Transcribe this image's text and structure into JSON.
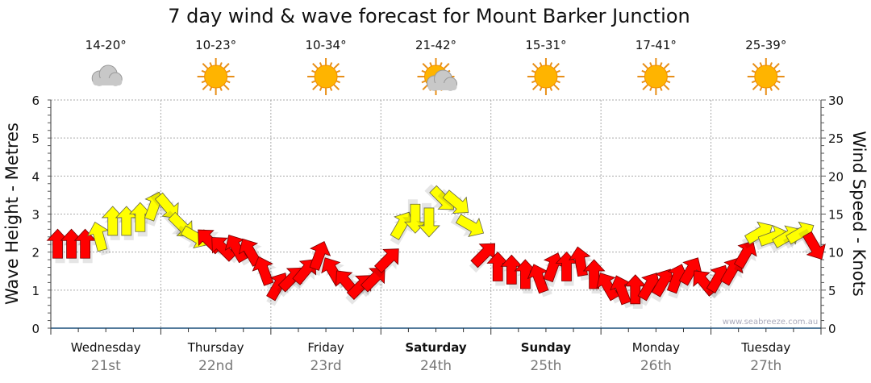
{
  "chart_data": {
    "type": "scatter",
    "title": "7 day wind & wave forecast for Mount Barker Junction",
    "ylabel_left": "Wave Height - Metres",
    "ylabel_right": "Wind Speed - Knots",
    "ylim_left": [
      0,
      6
    ],
    "ylim_right": [
      0,
      30
    ],
    "yticks_left": [
      "0",
      "1",
      "2",
      "3",
      "4",
      "5",
      "6"
    ],
    "yticks_right": [
      "0",
      "5",
      "10",
      "15",
      "20",
      "25",
      "30"
    ],
    "grid": true,
    "watermark": "www.seabreeze.com.au",
    "days": [
      {
        "name": "Wednesday",
        "date": "21st",
        "temp": "14-20°",
        "icon": "cloud",
        "bold": false
      },
      {
        "name": "Thursday",
        "date": "22nd",
        "temp": "10-23°",
        "icon": "sun",
        "bold": false
      },
      {
        "name": "Friday",
        "date": "23rd",
        "temp": "10-34°",
        "icon": "sun",
        "bold": false
      },
      {
        "name": "Saturday",
        "date": "24th",
        "temp": "21-42°",
        "icon": "sun-cloud",
        "bold": true
      },
      {
        "name": "Sunday",
        "date": "25th",
        "temp": "15-31°",
        "icon": "sun",
        "bold": true
      },
      {
        "name": "Monday",
        "date": "26th",
        "temp": "17-41°",
        "icon": "sun",
        "bold": false
      },
      {
        "name": "Tuesday",
        "date": "27th",
        "temp": "25-39°",
        "icon": "sun",
        "bold": false
      }
    ],
    "colors": {
      "red": "#ff0000",
      "yellow": "#ffff00"
    },
    "wind_series": {
      "hours_step": 3,
      "knots": [
        11,
        11,
        11,
        12,
        14,
        14,
        14.5,
        16,
        16,
        13.5,
        12,
        11.5,
        10.5,
        10.5,
        10,
        7.5,
        5.5,
        6.5,
        7.5,
        9.5,
        7.5,
        6,
        5.5,
        6.5,
        9,
        13.5,
        14.5,
        14,
        17,
        16.5,
        13.5,
        9.7,
        8,
        7.6,
        7,
        6.5,
        8,
        8,
        8.7,
        7,
        5.5,
        5,
        5,
        5.5,
        6,
        6.5,
        7.5,
        6,
        6.5,
        7.5,
        9.7,
        12.5,
        12,
        12,
        12.5,
        10.8
      ],
      "arrow_rotation_deg": [
        0,
        0,
        0,
        -15,
        0,
        0,
        0,
        20,
        140,
        135,
        120,
        -45,
        -45,
        -30,
        -30,
        -20,
        30,
        45,
        40,
        20,
        -30,
        -40,
        45,
        45,
        45,
        30,
        180,
        180,
        135,
        130,
        120,
        45,
        0,
        0,
        0,
        -20,
        20,
        0,
        -10,
        0,
        -30,
        -20,
        0,
        30,
        30,
        20,
        30,
        -40,
        30,
        30,
        30,
        60,
        70,
        60,
        60,
        150
      ],
      "color": [
        "red",
        "red",
        "red",
        "yellow",
        "yellow",
        "yellow",
        "yellow",
        "yellow",
        "yellow",
        "yellow",
        "yellow",
        "red",
        "red",
        "red",
        "red",
        "red",
        "red",
        "red",
        "red",
        "red",
        "red",
        "red",
        "red",
        "red",
        "red",
        "yellow",
        "yellow",
        "yellow",
        "yellow",
        "yellow",
        "yellow",
        "red",
        "red",
        "red",
        "red",
        "red",
        "red",
        "red",
        "red",
        "red",
        "red",
        "red",
        "red",
        "red",
        "red",
        "red",
        "red",
        "red",
        "red",
        "red",
        "red",
        "yellow",
        "yellow",
        "yellow",
        "yellow",
        "red"
      ]
    }
  }
}
